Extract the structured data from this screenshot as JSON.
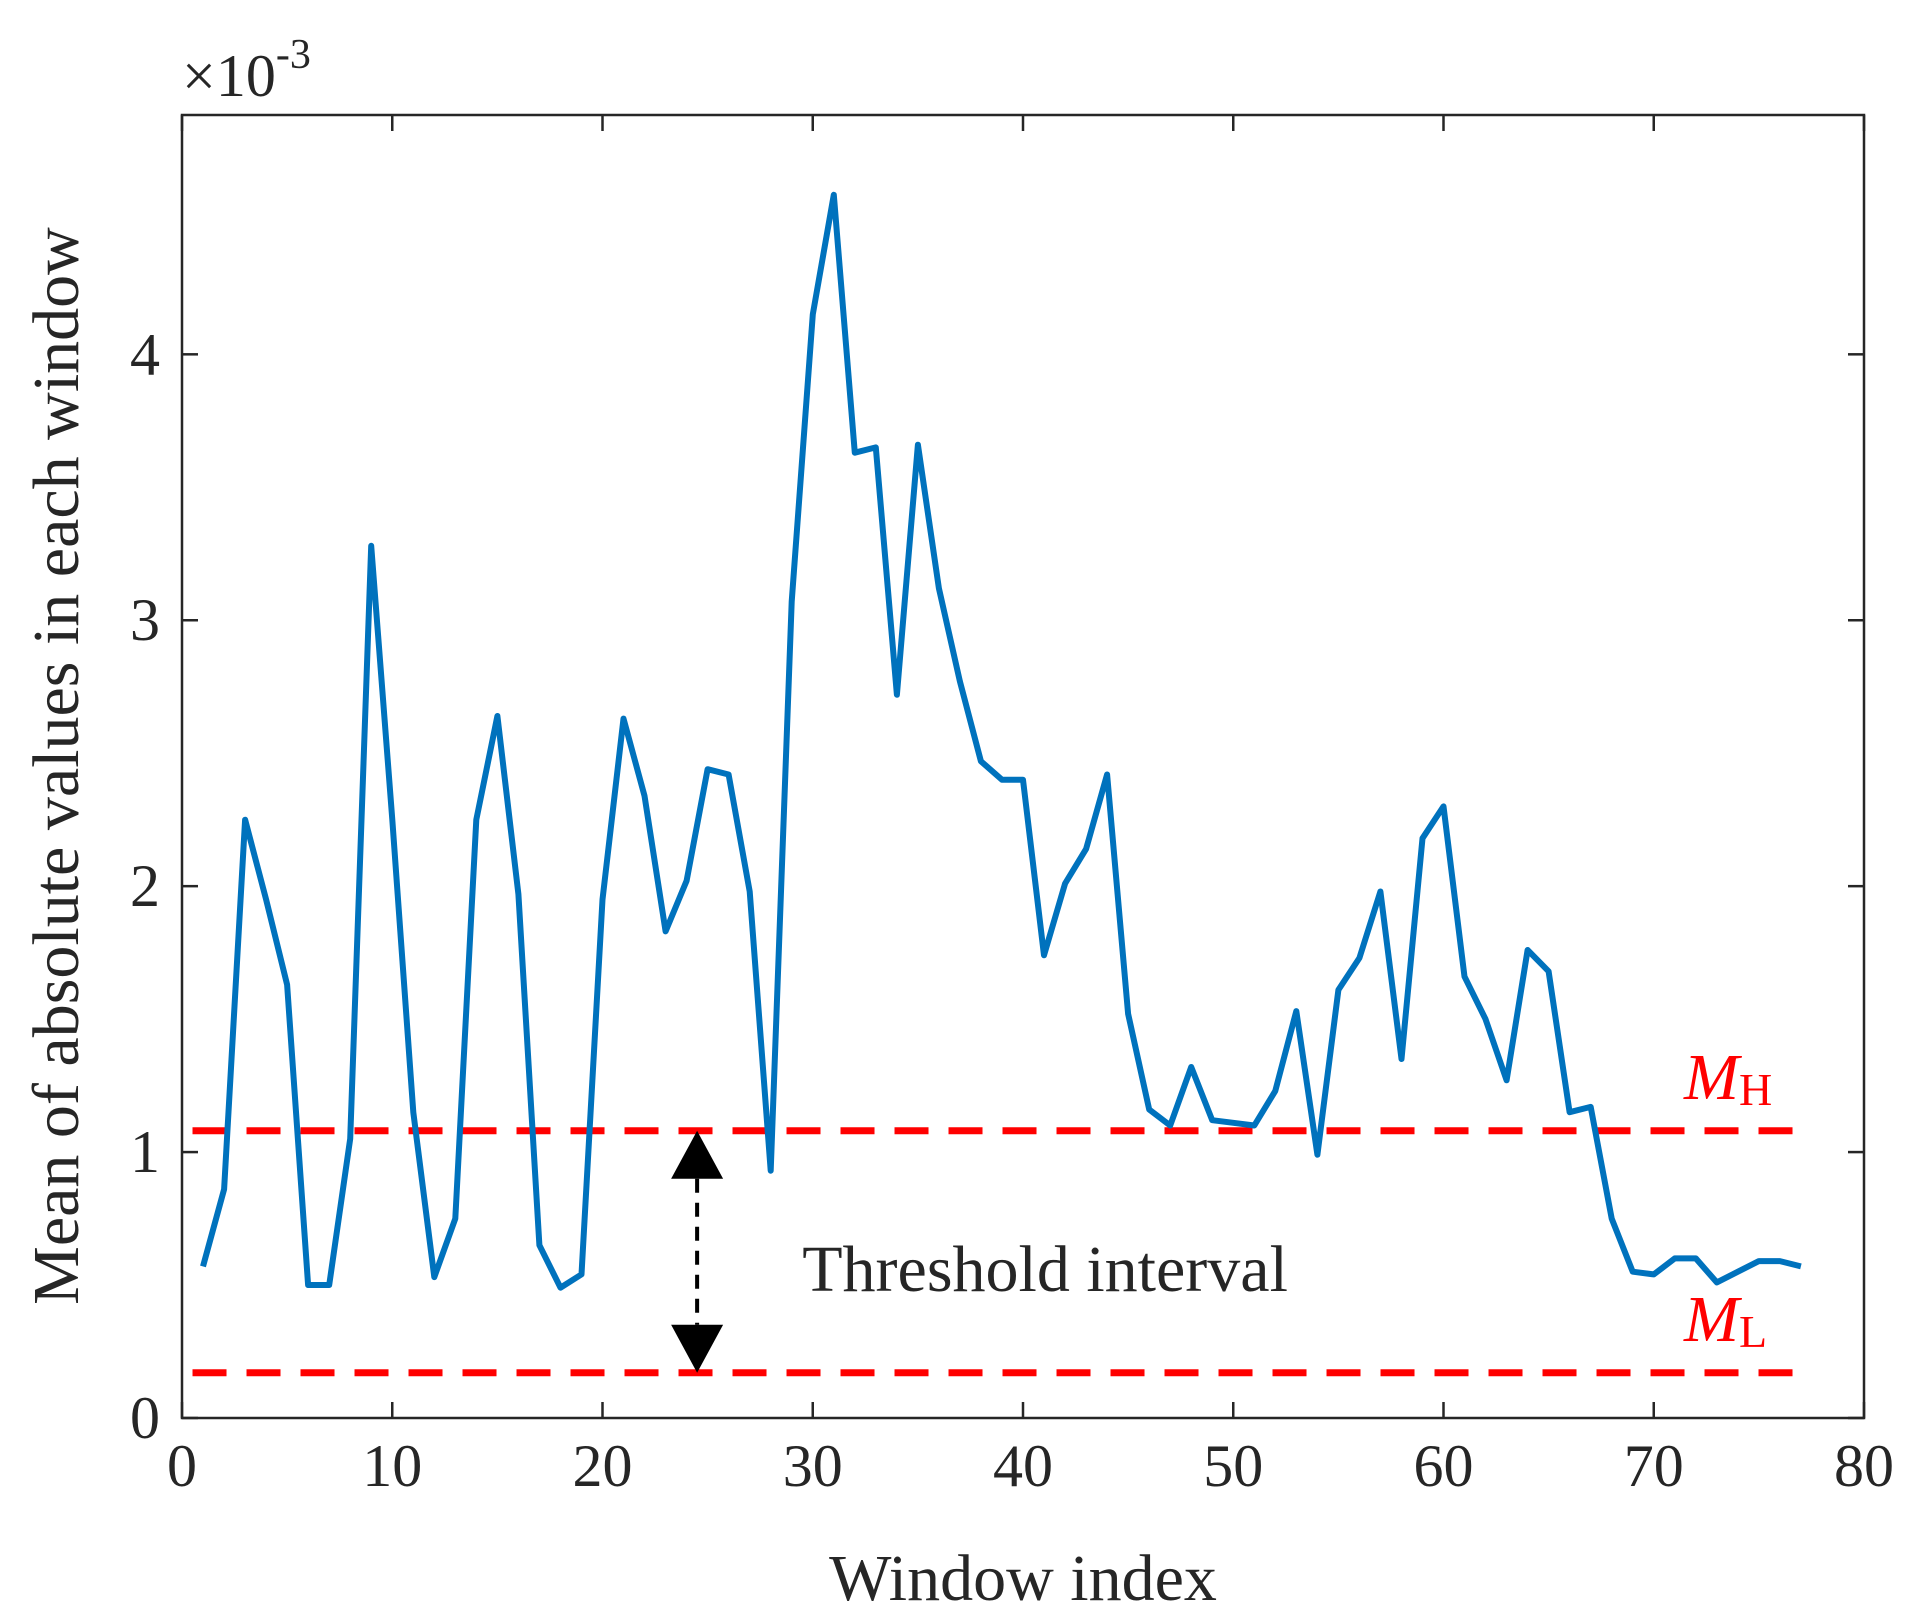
{
  "chart_data": {
    "type": "line",
    "title": "",
    "xlabel": "Window index",
    "ylabel": "Mean of absolute values in each window",
    "y_scale_factor": {
      "base": "10",
      "exponent": "-3",
      "multiply_sign": "×"
    },
    "xlim": [
      0,
      80
    ],
    "ylim": [
      0,
      4.9
    ],
    "x_ticks": [
      0,
      10,
      20,
      30,
      40,
      50,
      60,
      70,
      80
    ],
    "x_tick_labels": [
      "0",
      "10",
      "20",
      "30",
      "40",
      "50",
      "60",
      "70",
      "80"
    ],
    "y_ticks": [
      0,
      1,
      2,
      3,
      4
    ],
    "y_tick_labels": [
      "0",
      "1",
      "2",
      "3",
      "4"
    ],
    "grid": false,
    "series": [
      {
        "name": "Mean of absolute values",
        "color": "#0072BD",
        "x": [
          1,
          2,
          3,
          4,
          5,
          6,
          7,
          8,
          9,
          10,
          11,
          12,
          13,
          14,
          15,
          16,
          17,
          18,
          19,
          20,
          21,
          22,
          23,
          24,
          25,
          26,
          27,
          28,
          29,
          30,
          31,
          32,
          33,
          34,
          35,
          36,
          37,
          38,
          39,
          40,
          41,
          42,
          43,
          44,
          45,
          46,
          47,
          48,
          49,
          50,
          51,
          52,
          53,
          54,
          55,
          56,
          57,
          58,
          59,
          60,
          61,
          62,
          63,
          64,
          65,
          66,
          67,
          68,
          69,
          70,
          71,
          72,
          73,
          74,
          75,
          76,
          77
        ],
        "values": [
          0.57,
          0.86,
          2.25,
          1.95,
          1.63,
          0.5,
          0.5,
          1.05,
          3.28,
          2.25,
          1.15,
          0.53,
          0.75,
          2.25,
          2.64,
          1.97,
          0.65,
          0.49,
          0.54,
          1.95,
          2.63,
          2.34,
          1.83,
          2.02,
          2.44,
          2.42,
          1.98,
          0.93,
          3.07,
          4.15,
          4.6,
          3.63,
          3.65,
          2.72,
          3.66,
          3.12,
          2.77,
          2.47,
          2.4,
          2.4,
          1.74,
          2.01,
          2.14,
          2.42,
          1.52,
          1.16,
          1.1,
          1.32,
          1.12,
          1.11,
          1.1,
          1.23,
          1.53,
          0.99,
          1.61,
          1.73,
          1.98,
          1.35,
          2.18,
          2.3,
          1.66,
          1.5,
          1.27,
          1.76,
          1.68,
          1.15,
          1.17,
          0.75,
          0.55,
          0.54,
          0.6,
          0.6,
          0.51,
          0.55,
          0.59,
          0.59,
          0.57
        ]
      }
    ],
    "thresholds": [
      {
        "name": "M_H",
        "label_main": "M",
        "label_sub": "H",
        "value": 1.08,
        "x_range": [
          0.5,
          77
        ],
        "color": "#FF0000",
        "style": "dashed"
      },
      {
        "name": "M_L",
        "label_main": "M",
        "label_sub": "L",
        "value": 0.17,
        "x_range": [
          0.5,
          77
        ],
        "color": "#FF0000",
        "style": "dashed"
      }
    ],
    "annotation": {
      "text": "Threshold interval",
      "arrow_x": 24.5,
      "arrow_from": 1.08,
      "arrow_to": 0.17,
      "text_x": 29.5,
      "text_y": 0.56,
      "style": "double-headed dashed arrow"
    }
  }
}
